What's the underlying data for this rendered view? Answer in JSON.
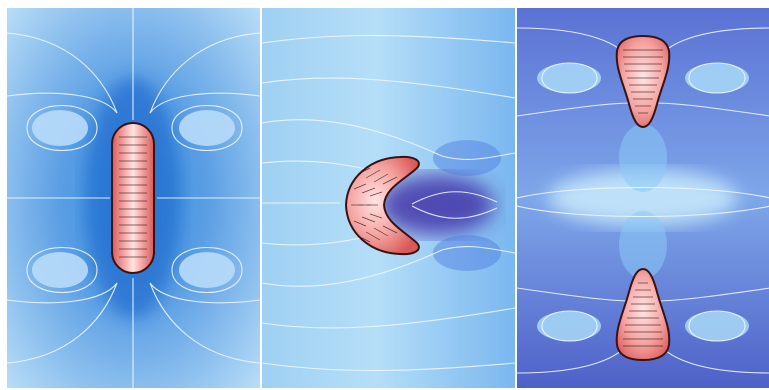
{
  "figure": {
    "panels": [
      {
        "name": "panel-rod",
        "shape": "capsule",
        "background": "#8fbbe6"
      },
      {
        "name": "panel-crescent",
        "shape": "crescent",
        "background": "#b7ddf7"
      },
      {
        "name": "panel-droplets",
        "shape": "pair-of-droplets",
        "background": "#5f7fd6"
      }
    ],
    "colors": {
      "body_fill_light": "#ffd4d3",
      "body_fill_dark": "#d95b59",
      "body_outline": "#3a1212",
      "streamline": "#eef7ff",
      "deep_blue": "#3d2fa4",
      "pale_blue": "#d9f0ff"
    }
  }
}
